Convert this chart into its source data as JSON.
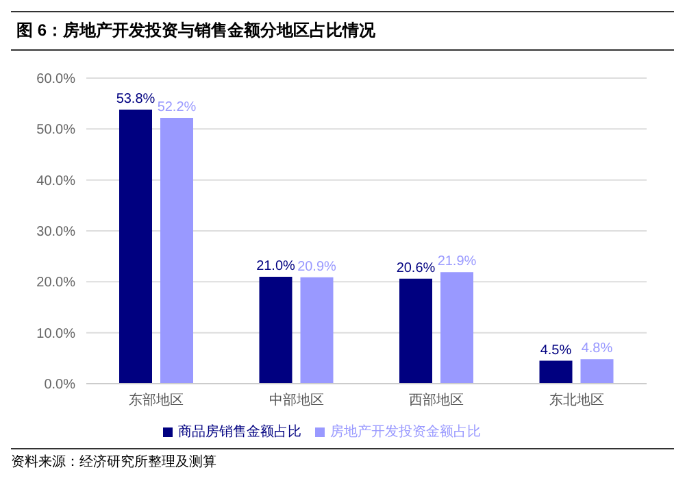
{
  "chart_data": {
    "type": "bar",
    "title": "图 6：房地产开发投资与销售金额分地区占比情况",
    "categories": [
      "东部地区",
      "中部地区",
      "西部地区",
      "东北地区"
    ],
    "series": [
      {
        "name": "商品房销售金额占比",
        "color": "#000080",
        "values": [
          53.8,
          21.0,
          20.6,
          4.5
        ],
        "value_labels": [
          "53.8%",
          "21.0%",
          "20.6%",
          "4.5%"
        ]
      },
      {
        "name": "房地产开发投资金额占比",
        "color": "#9999ff",
        "values": [
          52.2,
          20.9,
          21.9,
          4.8
        ],
        "value_labels": [
          "52.2%",
          "20.9%",
          "21.9%",
          "4.8%"
        ]
      }
    ],
    "ylim": [
      0,
      60
    ],
    "yticks": [
      {
        "value": 0,
        "label": "0.0%"
      },
      {
        "value": 10,
        "label": "10.0%"
      },
      {
        "value": 20,
        "label": "20.0%"
      },
      {
        "value": 30,
        "label": "30.0%"
      },
      {
        "value": 40,
        "label": "40.0%"
      },
      {
        "value": 50,
        "label": "50.0%"
      },
      {
        "value": 60,
        "label": "60.0%"
      }
    ],
    "grid": "y",
    "legend": "bottom",
    "annotations": [
      "资料来源：经济研究所整理及测算"
    ]
  }
}
